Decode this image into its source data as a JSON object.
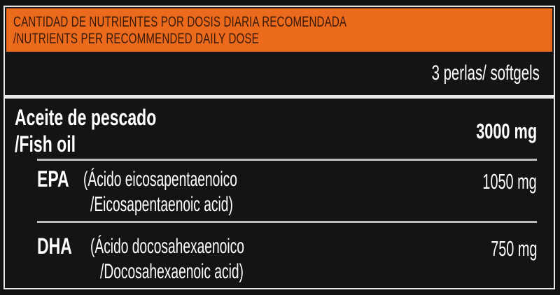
{
  "header": {
    "line1": "CANTIDAD DE NUTRIENTES POR DOSIS DIARIA RECOMENDADA",
    "line2": "/NUTRIENTS PER RECOMMENDED DAILY DOSE",
    "color": "#ec6a1c"
  },
  "serving": "3 perlas/ softgels",
  "rows": [
    {
      "name_es": "Aceite de pescado",
      "name_en": "/Fish oil",
      "amount": "3000 mg"
    },
    {
      "abbr": "EPA",
      "name_es": "(Ácido eicosapentaenoico",
      "name_en": "/Eicosapentaenoic acid)",
      "amount": "1050 mg"
    },
    {
      "abbr": "DHA",
      "name_es": "(Ácido docosahexaenoico",
      "name_en": "/Docosahexaenoic acid)",
      "amount": "750 mg"
    }
  ]
}
